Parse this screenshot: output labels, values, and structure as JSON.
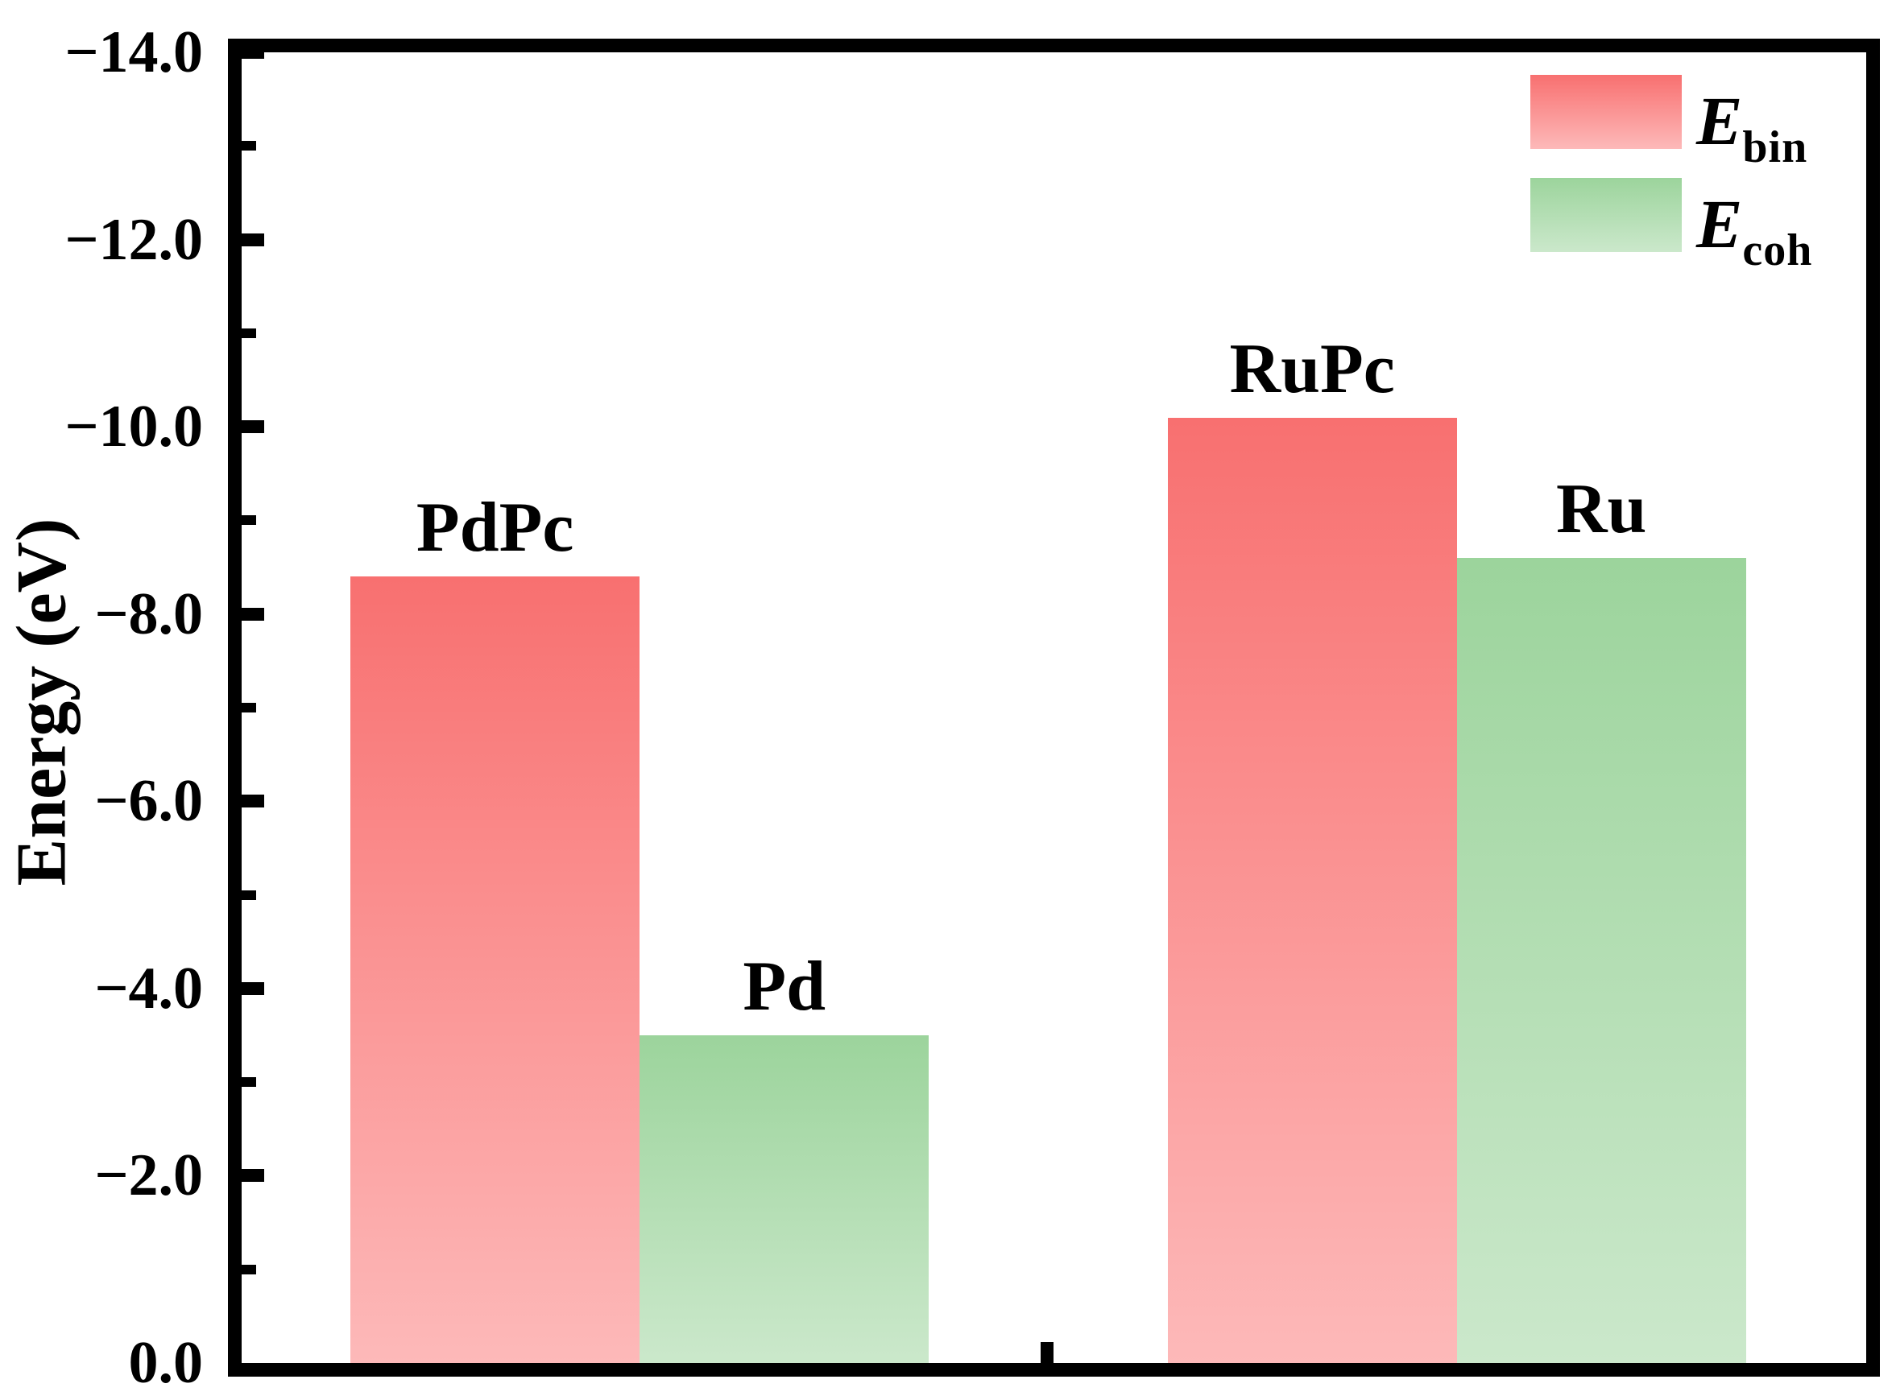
{
  "chart_data": {
    "type": "bar",
    "title": "",
    "ylabel": "Energy (eV)",
    "ylim": [
      0.0,
      -14.0
    ],
    "axis_reversed": true,
    "grid": false,
    "legend_position": "top-right",
    "ytick_values": [
      0,
      -2,
      -4,
      -6,
      -8,
      -10,
      -12,
      -14
    ],
    "ytick_labels": [
      "0.0",
      "−2.0",
      "−4.0",
      "−6.0",
      "−8.0",
      "−10.0",
      "−12.0",
      "−14.0"
    ],
    "minor_tick_values": [
      -1,
      -3,
      -5,
      -7,
      -9,
      -11,
      -13
    ],
    "x_separator_tick_frac": 0.496,
    "series": [
      {
        "name": "E_bin",
        "label_main": "E",
        "label_sub": "bin",
        "color_top": "#f87070",
        "color_bottom": "#fdb9b9"
      },
      {
        "name": "E_coh",
        "label_main": "E",
        "label_sub": "coh",
        "color_top": "#9cd49c",
        "color_bottom": "#cbe8cb"
      }
    ],
    "bars": [
      {
        "category": "PdPc",
        "series": "E_bin",
        "value": -8.4,
        "x_frac": 0.067,
        "w_frac": 0.178
      },
      {
        "category": "Pd",
        "series": "E_coh",
        "value": -3.5,
        "x_frac": 0.245,
        "w_frac": 0.178
      },
      {
        "category": "RuPc",
        "series": "E_bin",
        "value": -10.1,
        "x_frac": 0.57,
        "w_frac": 0.178
      },
      {
        "category": "Ru",
        "series": "E_coh",
        "value": -8.6,
        "x_frac": 0.748,
        "w_frac": 0.178
      }
    ]
  }
}
